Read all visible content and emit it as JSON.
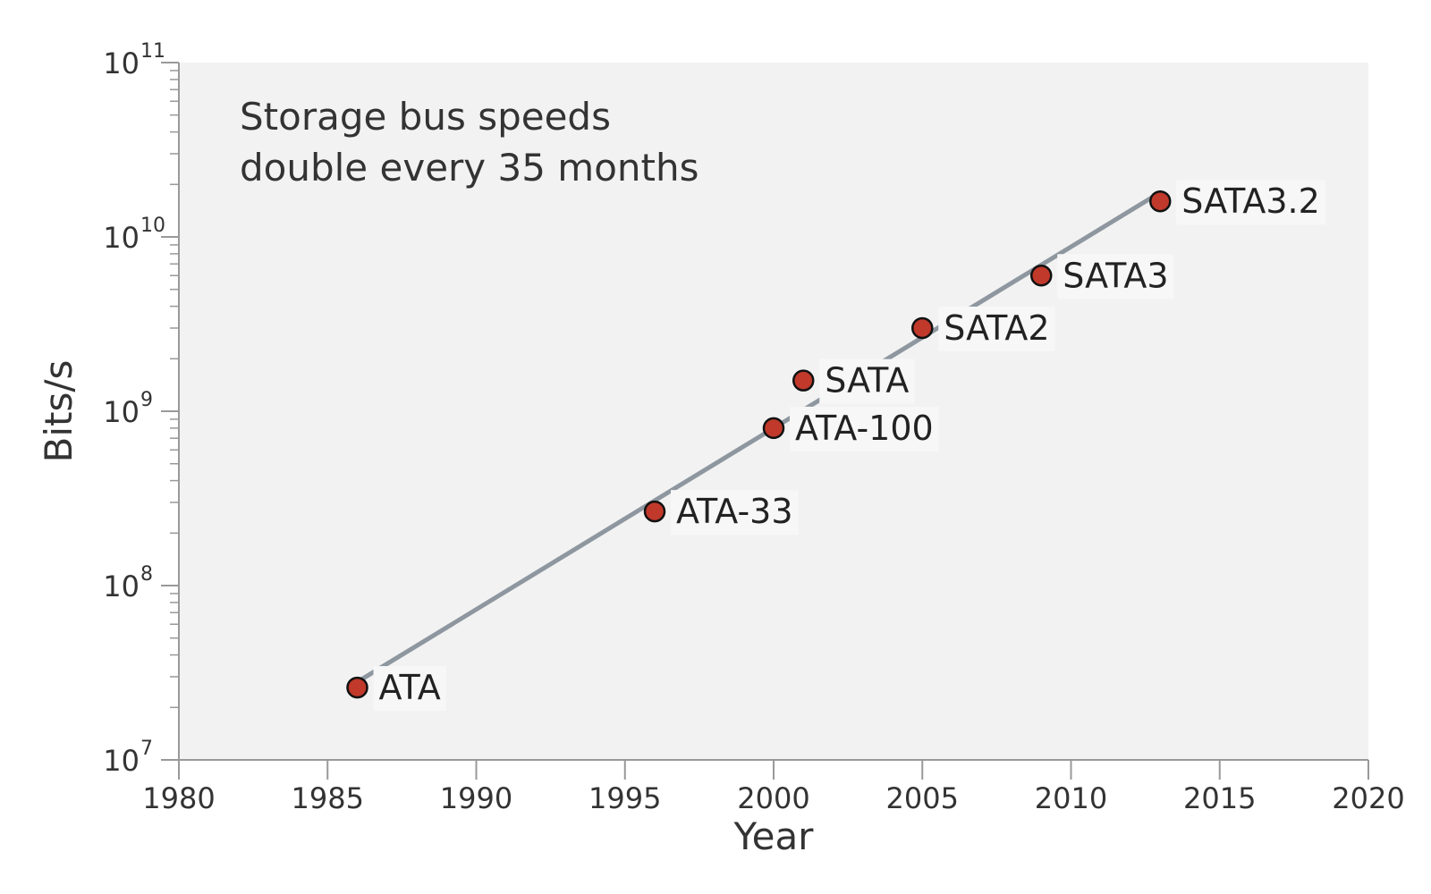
{
  "chart_data": {
    "type": "scatter",
    "title": "",
    "annotation": [
      "Storage bus speeds",
      "double every 35 months"
    ],
    "xlabel": "Year",
    "ylabel": "Bits/s",
    "xlim": [
      1980,
      2020
    ],
    "ylim": [
      10000000,
      100000000000
    ],
    "y_scale": "log",
    "x_ticks": [
      1980,
      1985,
      1990,
      1995,
      2000,
      2005,
      2010,
      2015,
      2020
    ],
    "y_ticks": [
      {
        "base": "10",
        "exp": "7",
        "value": 10000000
      },
      {
        "base": "10",
        "exp": "8",
        "value": 100000000
      },
      {
        "base": "10",
        "exp": "9",
        "value": 1000000000
      },
      {
        "base": "10",
        "exp": "10",
        "value": 10000000000
      },
      {
        "base": "10",
        "exp": "11",
        "value": 100000000000
      }
    ],
    "grid": false,
    "points": [
      {
        "label": "ATA",
        "x": 1986,
        "y": 26000000
      },
      {
        "label": "ATA-33",
        "x": 1996,
        "y": 266000000
      },
      {
        "label": "ATA-100",
        "x": 2000,
        "y": 800000000
      },
      {
        "label": "SATA",
        "x": 2001,
        "y": 1500000000
      },
      {
        "label": "SATA2",
        "x": 2005,
        "y": 3000000000
      },
      {
        "label": "SATA3",
        "x": 2009,
        "y": 6000000000
      },
      {
        "label": "SATA3.2",
        "x": 2013,
        "y": 16000000000
      }
    ],
    "trend": {
      "x": [
        1986,
        2013
      ],
      "y": [
        28000000,
        18000000000
      ]
    },
    "colors": {
      "plot_bg": "#f2f2f2",
      "point_fill": "#c0392b",
      "point_stroke": "#111111",
      "trend": "#8e979f",
      "axis": "#999999",
      "label_bg": "#f7f7f7"
    }
  }
}
